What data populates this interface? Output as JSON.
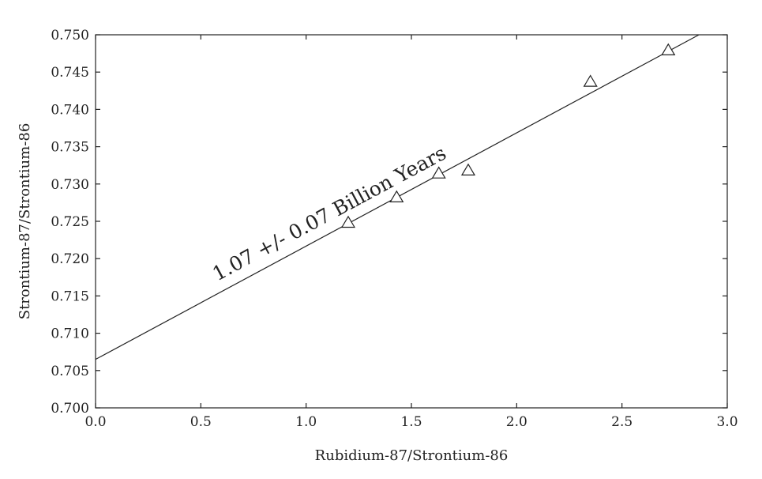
{
  "chart_data": {
    "type": "scatter",
    "xlabel": "Rubidium-87/Strontium-86",
    "ylabel": "Strontium-87/Strontium-86",
    "xlim": [
      0.0,
      3.0
    ],
    "ylim": [
      0.7,
      0.75
    ],
    "x_ticks": [
      "0.0",
      "0.5",
      "1.0",
      "1.5",
      "2.0",
      "2.5",
      "3.0"
    ],
    "y_ticks": [
      "0.700",
      "0.705",
      "0.710",
      "0.715",
      "0.720",
      "0.725",
      "0.730",
      "0.735",
      "0.740",
      "0.745",
      "0.750"
    ],
    "grid": false,
    "marker": "open-triangle",
    "series": [
      {
        "points": [
          {
            "x": 1.2,
            "y": 0.7248
          },
          {
            "x": 1.43,
            "y": 0.7282
          },
          {
            "x": 1.63,
            "y": 0.7314
          },
          {
            "x": 1.77,
            "y": 0.7318
          },
          {
            "x": 2.35,
            "y": 0.7437
          },
          {
            "x": 2.72,
            "y": 0.7479
          }
        ]
      }
    ],
    "fit_line": {
      "intercept": 0.7065,
      "slope": 0.01518,
      "label": "1.07 +/- 0.07 Billion Years"
    }
  }
}
